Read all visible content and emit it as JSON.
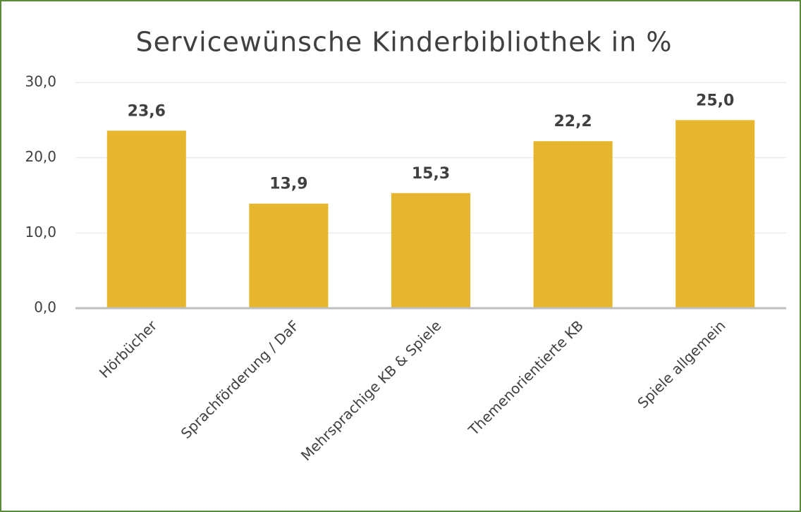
{
  "chart_data": {
    "type": "bar",
    "title": "Servicewünsche Kinderbibliothek in %",
    "categories": [
      "Hörbücher",
      "Sprachförderung / DaF",
      "Mehrsprachige KB & Spiele",
      "Themenorientierte KB",
      "Spiele allgemein"
    ],
    "values": [
      23.6,
      13.9,
      15.3,
      22.2,
      25.0
    ],
    "value_labels": [
      "23,6",
      "13,9",
      "15,3",
      "22,2",
      "25,0"
    ],
    "color": "#e6b72e",
    "ylim": [
      0,
      30
    ],
    "yticks": [
      {
        "value": 0,
        "label": "0,0"
      },
      {
        "value": 10,
        "label": "10,0"
      },
      {
        "value": 20,
        "label": "20,0"
      },
      {
        "value": 30,
        "label": "30,0"
      }
    ],
    "grid": true
  }
}
